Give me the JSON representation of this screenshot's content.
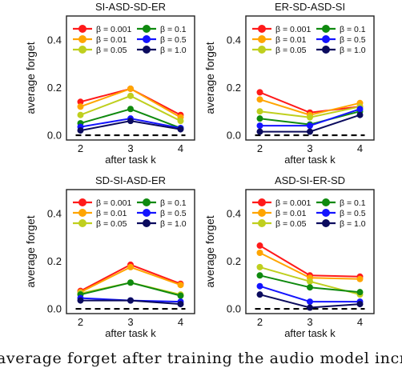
{
  "figure": {
    "caption": "average forget after training the audio model incr"
  },
  "palette": {
    "0.001": "#ff1a1a",
    "0.01": "#ffa500",
    "0.05": "#bfcf1e",
    "0.1": "#0f8a0f",
    "0.5": "#1414ff",
    "1.0": "#0b0b5e"
  },
  "chart_data": [
    {
      "type": "line",
      "title": "SI-ASD-SD-ER",
      "xlabel": "after task k",
      "ylabel": "average forget",
      "x": [
        2,
        3,
        4
      ],
      "xticks": [
        "2",
        "3",
        "4"
      ],
      "yticks": [
        "0.0",
        "0.2",
        "0.4"
      ],
      "ylim": [
        -0.02,
        0.5
      ],
      "baseline": 0.0,
      "grid": false,
      "legend": "top",
      "series": [
        {
          "name": "β = 0.001",
          "beta": "0.001",
          "values": [
            0.14,
            0.195,
            0.085
          ]
        },
        {
          "name": "β = 0.01",
          "beta": "0.01",
          "values": [
            0.12,
            0.195,
            0.075
          ]
        },
        {
          "name": "β = 0.05",
          "beta": "0.05",
          "values": [
            0.085,
            0.165,
            0.06
          ]
        },
        {
          "name": "β = 0.1",
          "beta": "0.1",
          "values": [
            0.05,
            0.11,
            0.03
          ]
        },
        {
          "name": "β = 0.5",
          "beta": "0.5",
          "values": [
            0.035,
            0.07,
            0.03
          ]
        },
        {
          "name": "β = 1.0",
          "beta": "1.0",
          "values": [
            0.02,
            0.06,
            0.025
          ]
        }
      ]
    },
    {
      "type": "line",
      "title": "ER-SD-ASD-SI",
      "xlabel": "after task k",
      "ylabel": "average forget",
      "x": [
        2,
        3,
        4
      ],
      "xticks": [
        "2",
        "3",
        "4"
      ],
      "yticks": [
        "0.0",
        "0.2",
        "0.4"
      ],
      "ylim": [
        -0.02,
        0.5
      ],
      "baseline": 0.0,
      "grid": false,
      "legend": "top",
      "series": [
        {
          "name": "β = 0.001",
          "beta": "0.001",
          "values": [
            0.18,
            0.095,
            0.12
          ]
        },
        {
          "name": "β = 0.01",
          "beta": "0.01",
          "values": [
            0.15,
            0.085,
            0.135
          ]
        },
        {
          "name": "β = 0.05",
          "beta": "0.05",
          "values": [
            0.1,
            0.075,
            0.12
          ]
        },
        {
          "name": "β = 0.1",
          "beta": "0.1",
          "values": [
            0.07,
            0.045,
            0.1
          ]
        },
        {
          "name": "β = 0.5",
          "beta": "0.5",
          "values": [
            0.04,
            0.04,
            0.11
          ]
        },
        {
          "name": "β = 1.0",
          "beta": "1.0",
          "values": [
            0.015,
            0.015,
            0.085
          ]
        }
      ]
    },
    {
      "type": "line",
      "title": "SD-SI-ASD-ER",
      "xlabel": "after task k",
      "ylabel": "average forget",
      "x": [
        2,
        3,
        4
      ],
      "xticks": [
        "2",
        "3",
        "4"
      ],
      "yticks": [
        "0.0",
        "0.2",
        "0.4"
      ],
      "ylim": [
        -0.02,
        0.5
      ],
      "baseline": 0.0,
      "grid": false,
      "legend": "top",
      "series": [
        {
          "name": "β = 0.001",
          "beta": "0.001",
          "values": [
            0.075,
            0.185,
            0.105
          ]
        },
        {
          "name": "β = 0.01",
          "beta": "0.01",
          "values": [
            0.07,
            0.175,
            0.1
          ]
        },
        {
          "name": "β = 0.05",
          "beta": "0.05",
          "values": [
            0.065,
            0.11,
            0.06
          ]
        },
        {
          "name": "β = 0.1",
          "beta": "0.1",
          "values": [
            0.06,
            0.11,
            0.055
          ]
        },
        {
          "name": "β = 0.5",
          "beta": "0.5",
          "values": [
            0.045,
            0.035,
            0.03
          ]
        },
        {
          "name": "β = 1.0",
          "beta": "1.0",
          "values": [
            0.035,
            0.035,
            0.02
          ]
        }
      ]
    },
    {
      "type": "line",
      "title": "ASD-SI-ER-SD",
      "xlabel": "after task k",
      "ylabel": "average forget",
      "x": [
        2,
        3,
        4
      ],
      "xticks": [
        "2",
        "3",
        "4"
      ],
      "yticks": [
        "0.0",
        "0.2",
        "0.4"
      ],
      "ylim": [
        -0.02,
        0.5
      ],
      "baseline": 0.0,
      "grid": false,
      "legend": "top",
      "series": [
        {
          "name": "β = 0.001",
          "beta": "0.001",
          "values": [
            0.265,
            0.14,
            0.135
          ]
        },
        {
          "name": "β = 0.01",
          "beta": "0.01",
          "values": [
            0.235,
            0.13,
            0.125
          ]
        },
        {
          "name": "β = 0.05",
          "beta": "0.05",
          "values": [
            0.175,
            0.115,
            0.06
          ]
        },
        {
          "name": "β = 0.1",
          "beta": "0.1",
          "values": [
            0.14,
            0.09,
            0.07
          ]
        },
        {
          "name": "β = 0.5",
          "beta": "0.5",
          "values": [
            0.095,
            0.03,
            0.03
          ]
        },
        {
          "name": "β = 1.0",
          "beta": "1.0",
          "values": [
            0.06,
            0.005,
            0.02
          ]
        }
      ]
    }
  ]
}
